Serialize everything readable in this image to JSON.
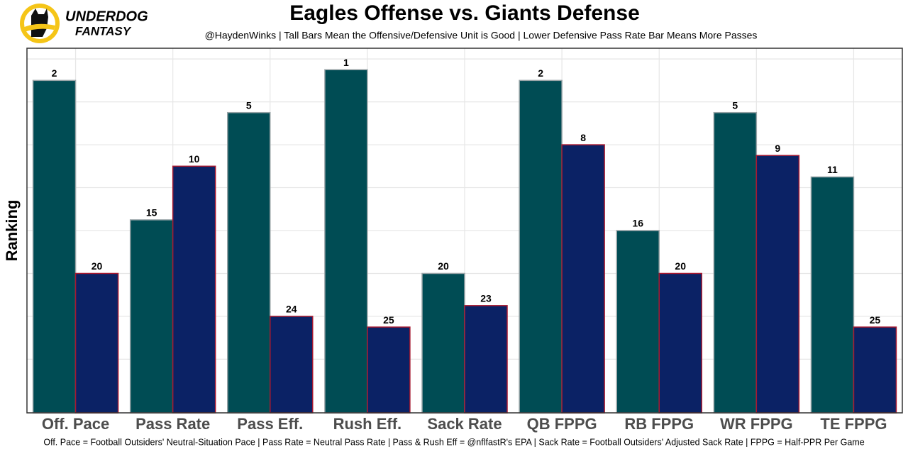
{
  "logo": {
    "line1": "UNDERDOG",
    "line2": "FANTASY"
  },
  "chart_data": {
    "type": "bar",
    "title": "Eagles Offense vs. Giants Defense",
    "subtitle": "@HaydenWinks | Tall Bars Mean the Offensive/Defensive Unit is Good | Lower Defensive Pass Rate Bar Means More Passes",
    "y_label": "Ranking",
    "footnote": "Off. Pace = Football Outsiders' Neutral-Situation Pace | Pass Rate = Neutral Pass Rate | Pass & Rush Eff = @nflfastR's EPA | Sack Rate = Football Outsiders' Adjusted Sack Rate | FPPG = Half-PPR Per Game",
    "categories": [
      "Off. Pace",
      "Pass Rate",
      "Pass Eff.",
      "Rush Eff.",
      "Sack Rate",
      "QB FPPG",
      "RB FPPG",
      "WR FPPG",
      "TE FPPG"
    ],
    "series": [
      {
        "color": "#004c54",
        "edge": "#9aa5a8",
        "values": [
          2,
          15,
          5,
          1,
          20,
          2,
          16,
          5,
          11
        ]
      },
      {
        "color": "#0b2265",
        "edge": "#a71930",
        "values": [
          20,
          10,
          24,
          25,
          23,
          8,
          20,
          9,
          25
        ]
      }
    ],
    "ylim": [
      33,
      -1
    ],
    "yticks": [
      28,
      24,
      20,
      16,
      12,
      8,
      4,
      0
    ],
    "grid": true
  }
}
